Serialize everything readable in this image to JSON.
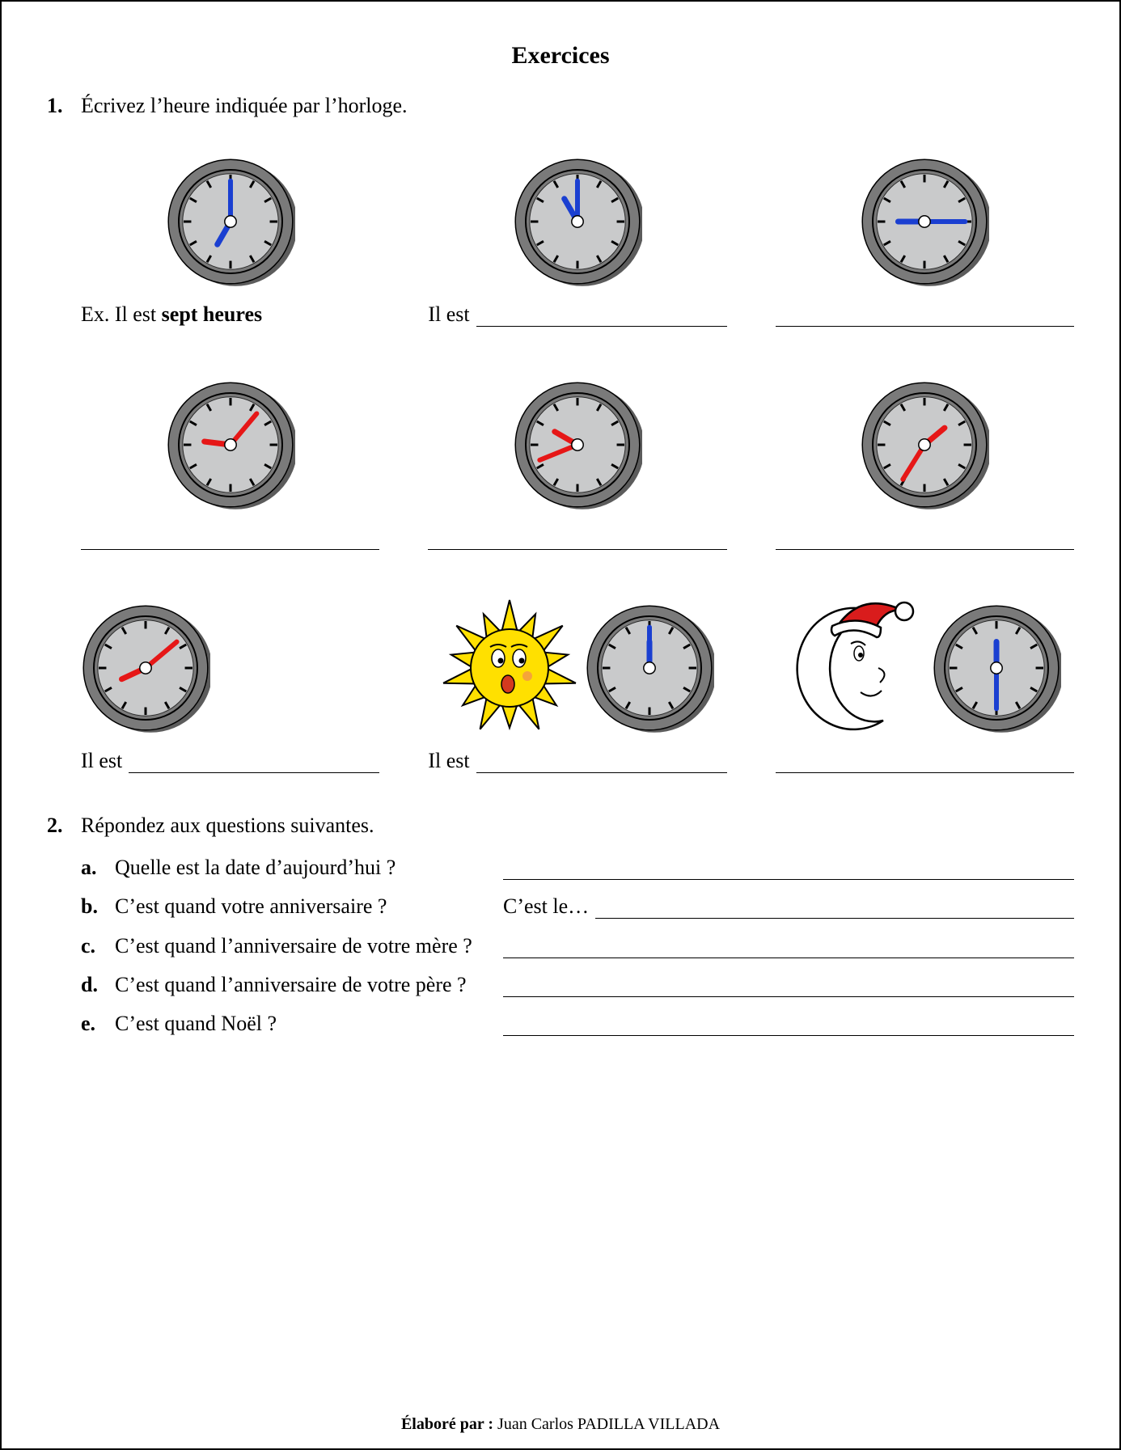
{
  "title": "Exercices",
  "footer_label": "Élaboré par : ",
  "footer_author": "Juan Carlos PADILLA VILLADA",
  "exercise1": {
    "number": "1.",
    "prompt": "Écrivez l’heure indiquée par l’horloge.",
    "example_prefix": "Ex. Il est ",
    "example_answer": "sept heures",
    "il_est": "Il est ",
    "clocks": [
      {
        "hour_angle": 210,
        "minute_angle": 0,
        "hand_color": "#1a3fd1",
        "caption_type": "example"
      },
      {
        "hour_angle": 330,
        "minute_angle": 0,
        "hand_color": "#1a3fd1",
        "caption_type": "il_est"
      },
      {
        "hour_angle": 270,
        "minute_angle": 90,
        "hand_color": "#1a3fd1",
        "caption_type": "blank"
      },
      {
        "hour_angle": 277,
        "minute_angle": 40,
        "hand_color": "#e61717",
        "caption_type": "blank"
      },
      {
        "hour_angle": 300,
        "minute_angle": 248,
        "hand_color": "#e61717",
        "caption_type": "blank"
      },
      {
        "hour_angle": 50,
        "minute_angle": 212,
        "hand_color": "#e61717",
        "caption_type": "blank"
      },
      {
        "hour_angle": 245,
        "minute_angle": 50,
        "hand_color": "#e61717",
        "caption_type": "il_est",
        "clock_align": "left"
      },
      {
        "hour_angle": 0,
        "minute_angle": 0,
        "hand_color": "#1a3fd1",
        "caption_type": "il_est",
        "decoration": "sun"
      },
      {
        "hour_angle": 0,
        "minute_angle": 180,
        "hand_color": "#1a3fd1",
        "caption_type": "blank",
        "decoration": "moon"
      }
    ]
  },
  "exercise2": {
    "number": "2.",
    "prompt": "Répondez aux questions suivantes.",
    "questions": [
      {
        "letter": "a.",
        "text": "Quelle est la date d’aujourd’hui ?",
        "answer_prefix": ""
      },
      {
        "letter": "b.",
        "text": "C’est quand votre anniversaire ?",
        "answer_prefix": "C’est le… "
      },
      {
        "letter": "c.",
        "text": "C’est quand l’anniversaire de votre mère ?",
        "answer_prefix": ""
      },
      {
        "letter": "d.",
        "text": "C’est quand l’anniversaire de votre père ?",
        "answer_prefix": ""
      },
      {
        "letter": "e.",
        "text": "C’est quand Noël ?",
        "answer_prefix": ""
      }
    ]
  },
  "clock_style": {
    "size": 160,
    "rim_color": "#7a7a7a",
    "rim_shadow": "#5c5c5c",
    "face_color": "#c9cacb",
    "tick_color": "#000000",
    "center_fill": "#ffffff",
    "center_stroke": "#000000"
  }
}
